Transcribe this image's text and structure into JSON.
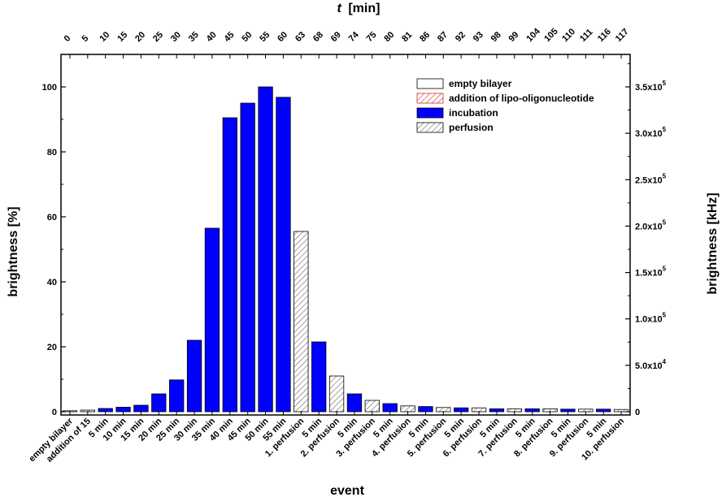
{
  "chart_data": {
    "type": "bar",
    "xlabel": "event",
    "ylabel": "brightness [%]",
    "y2label": "brightness [kHz]",
    "top_axis_label_italic": "t",
    "top_axis_label_unit": "[min]",
    "ylim": [
      -1,
      110
    ],
    "yticks": [
      0,
      20,
      40,
      60,
      80,
      100
    ],
    "y2lim": [
      -3500,
      385000
    ],
    "y2ticks": [
      {
        "value": 0,
        "label": "0"
      },
      {
        "value": 50000,
        "label": "5.0x10",
        "exp": "4"
      },
      {
        "value": 100000,
        "label": "1.0x10",
        "exp": "5"
      },
      {
        "value": 150000,
        "label": "1.5x10",
        "exp": "5"
      },
      {
        "value": 200000,
        "label": "2.0x10",
        "exp": "5"
      },
      {
        "value": 250000,
        "label": "2.5x10",
        "exp": "5"
      },
      {
        "value": 300000,
        "label": "3.0x10",
        "exp": "5"
      },
      {
        "value": 350000,
        "label": "3.5x10",
        "exp": "5"
      }
    ],
    "categories": [
      "empty bilayer",
      "addition of 15",
      "5 min",
      "10 min",
      "15 min",
      "20 min",
      "25 min",
      "30 min",
      "35 min",
      "40 min",
      "45 min",
      "50 min",
      "55 min",
      "1. perfusion",
      "5 min",
      "2. perfusion",
      "5 min",
      "3. perfusion",
      "5 min",
      "4. perfusion",
      "5 min",
      "5. perfusion",
      "5 min",
      "6. perfusion",
      "5 min",
      "7. perfusion",
      "5 min",
      "8. perfusion",
      "5 min",
      "9. perfusion",
      "5 min",
      "10. perfusion"
    ],
    "time_min": [
      "0",
      "5",
      "10",
      "15",
      "20",
      "25",
      "30",
      "35",
      "40",
      "45",
      "50",
      "55",
      "60",
      "63",
      "68",
      "69",
      "74",
      "75",
      "80",
      "81",
      "86",
      "87",
      "92",
      "93",
      "98",
      "99",
      "104",
      "105",
      "110",
      "111",
      "116",
      "117"
    ],
    "values": [
      0.3,
      0.5,
      1.0,
      1.4,
      2.0,
      5.5,
      9.8,
      22,
      56.5,
      90.5,
      95,
      100,
      96.8,
      55.5,
      21.5,
      11,
      5.5,
      3.5,
      2.5,
      1.8,
      1.6,
      1.3,
      1.2,
      1.2,
      0.9,
      0.9,
      0.9,
      0.9,
      0.8,
      0.8,
      0.8,
      0.7
    ],
    "kinds": [
      "empty",
      "addition",
      "incubation",
      "incubation",
      "incubation",
      "incubation",
      "incubation",
      "incubation",
      "incubation",
      "incubation",
      "incubation",
      "incubation",
      "incubation",
      "perfusion",
      "incubation",
      "perfusion",
      "incubation",
      "perfusion",
      "incubation",
      "perfusion",
      "incubation",
      "perfusion",
      "incubation",
      "perfusion",
      "incubation",
      "perfusion",
      "incubation",
      "perfusion",
      "incubation",
      "perfusion",
      "incubation",
      "perfusion"
    ],
    "legend": [
      {
        "key": "empty",
        "label": "empty bilayer"
      },
      {
        "key": "addition",
        "label": "addition of lipo-oligonucleotide"
      },
      {
        "key": "incubation",
        "label": "incubation"
      },
      {
        "key": "perfusion",
        "label": "perfusion"
      }
    ],
    "colors": {
      "incubation": "#0000ff",
      "edge": "#000000",
      "addition_hatch": "#d03030",
      "perfusion_hatch": "#555555"
    }
  }
}
